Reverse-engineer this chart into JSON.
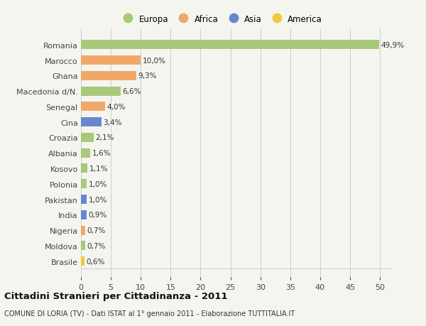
{
  "categories": [
    "Romania",
    "Marocco",
    "Ghana",
    "Macedonia d/N.",
    "Senegal",
    "Cina",
    "Croazia",
    "Albania",
    "Kosovo",
    "Polonia",
    "Pakistan",
    "India",
    "Nigeria",
    "Moldova",
    "Brasile"
  ],
  "values": [
    49.9,
    10.0,
    9.3,
    6.6,
    4.0,
    3.4,
    2.1,
    1.6,
    1.1,
    1.0,
    1.0,
    0.9,
    0.7,
    0.7,
    0.6
  ],
  "labels": [
    "49,9%",
    "10,0%",
    "9,3%",
    "6,6%",
    "4,0%",
    "3,4%",
    "2,1%",
    "1,6%",
    "1,1%",
    "1,0%",
    "1,0%",
    "0,9%",
    "0,7%",
    "0,7%",
    "0,6%"
  ],
  "continents": [
    "Europa",
    "Africa",
    "Africa",
    "Europa",
    "Africa",
    "Asia",
    "Europa",
    "Europa",
    "Europa",
    "Europa",
    "Asia",
    "Asia",
    "Africa",
    "Europa",
    "America"
  ],
  "colors": {
    "Europa": "#a8c87a",
    "Africa": "#f0a868",
    "Asia": "#6688cc",
    "America": "#f0c840"
  },
  "legend_order": [
    "Europa",
    "Africa",
    "Asia",
    "America"
  ],
  "xlim": [
    0,
    52
  ],
  "xticks": [
    0,
    5,
    10,
    15,
    20,
    25,
    30,
    35,
    40,
    45,
    50
  ],
  "title": "Cittadini Stranieri per Cittadinanza - 2011",
  "subtitle": "COMUNE DI LORIA (TV) - Dati ISTAT al 1° gennaio 2011 - Elaborazione TUTTITALIA.IT",
  "background_color": "#f5f5f0",
  "grid_color": "#cccccc",
  "bar_height": 0.6
}
